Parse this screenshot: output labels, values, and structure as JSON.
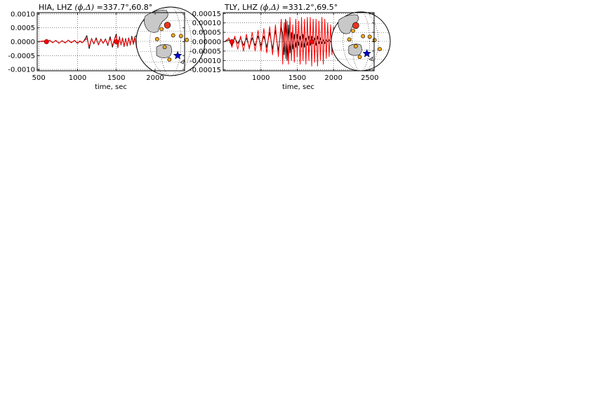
{
  "figure": {
    "background": "#ffffff",
    "colors": {
      "observed": "#000000",
      "synthetic": "#ff0000",
      "land": "#c8c8c8",
      "station": "#f4a81d",
      "station_highlight": "#e8341c",
      "event": "#0000cc",
      "axes": "#000000",
      "grid": "#000000"
    }
  },
  "chart_data": [
    {
      "type": "line",
      "title": "HIA, LHZ (ϕ,Δ)=337.7°,60.8°",
      "title_station": "HIA, LHZ",
      "title_phi_delta_symbol": "(ϕ,Δ)",
      "title_values": "=337.7°,60.8°",
      "xlabel": "time, sec",
      "ylabel": "",
      "xlim": [
        480,
        2380
      ],
      "ylim": [
        -0.00105,
        0.00105
      ],
      "xticks": [
        "500",
        "1000",
        "1500",
        "2000"
      ],
      "xtick_values": [
        500,
        1000,
        1500,
        2000
      ],
      "yticks": [
        "-0.0010",
        "-0.0005",
        "0.0000",
        "0.0005",
        "0.0010"
      ],
      "ytick_values": [
        -0.001,
        -0.0005,
        0,
        0.0005,
        0.001
      ],
      "grid": true,
      "series": [
        {
          "x": [
            500,
            560,
            600,
            640,
            680,
            720,
            760,
            800,
            840,
            880,
            920,
            960,
            1000,
            1030,
            1060,
            1090,
            1120,
            1150,
            1180,
            1210,
            1240,
            1270,
            1300,
            1330,
            1360,
            1390,
            1420,
            1450,
            1480,
            1500,
            1520,
            1540,
            1560,
            1580,
            1600,
            1620,
            1640,
            1660,
            1680,
            1700,
            1720,
            1740,
            1760,
            1780,
            1800,
            1820,
            1840,
            1860
          ],
          "y": [
            0,
            2e-05,
            -4e-05,
            5e-05,
            -3e-05,
            4e-05,
            -5e-05,
            3e-05,
            -4e-05,
            5e-05,
            -3e-05,
            4e-05,
            -6e-05,
            2e-05,
            -4e-05,
            6e-05,
            0.00022,
            -0.00025,
            0.00012,
            -8e-05,
            0.00014,
            -0.00012,
            0.0001,
            -6e-05,
            0.0001,
            -0.00014,
            0.00018,
            -0.0002,
            0.00012,
            0.00028,
            -0.00022,
            0.00018,
            -0.00012,
            0.00014,
            -0.00018,
            0.00012,
            -0.00016,
            0.00014,
            -0.00012,
            0.0002,
            -6e-05,
            0.00018,
            0.00022,
            0.0002,
            0.00012,
            4e-05,
            2e-05,
            0
          ]
        },
        {
          "x": [
            500,
            560,
            600,
            640,
            680,
            720,
            760,
            800,
            840,
            880,
            920,
            960,
            1000,
            1030,
            1060,
            1090,
            1120,
            1150,
            1180,
            1210,
            1240,
            1270,
            1300,
            1330,
            1360,
            1390,
            1420,
            1450,
            1480,
            1500,
            1520,
            1540,
            1560,
            1580,
            1600,
            1620,
            1640,
            1660,
            1680,
            1700,
            1720,
            1740,
            1760,
            1780,
            1800,
            1815,
            1830,
            1845,
            1860,
            1875,
            1890,
            1905,
            1920,
            1935,
            1950,
            1965
          ],
          "y": [
            0,
            3e-05,
            -5e-05,
            6e-05,
            -4e-05,
            5e-05,
            -6e-05,
            4e-05,
            -5e-05,
            6e-05,
            -4e-05,
            5e-05,
            -5e-05,
            3e-05,
            -3e-05,
            4e-05,
            0.00012,
            -0.00018,
            0.0001,
            -6e-05,
            0.0001,
            -0.0001,
            8e-05,
            -5e-05,
            8e-05,
            -0.0001,
            0.00012,
            -0.00014,
            0.0001,
            0.00022,
            -0.0002,
            0.00016,
            -0.0001,
            0.00012,
            -0.00016,
            0.0001,
            -0.00014,
            0.00012,
            -0.0001,
            0.00016,
            -0.0001,
            0.00014,
            -0.00022,
            0.00024,
            -0.0003,
            -0.00045,
            0.0004,
            -0.00042,
            0.00045,
            -0.0004,
            0.0005,
            0.00075,
            0.0008,
            0.0006,
            0.00035,
            0.00015
          ]
        }
      ],
      "markers": [
        {
          "x": 600,
          "y": 0.0,
          "label": "start"
        },
        {
          "x": 1500,
          "y": 0.0,
          "label": "end"
        }
      ],
      "inset_map": {
        "stations": [
          {
            "lon": 112,
            "lat": 48,
            "highlight": true
          },
          {
            "lon": 100,
            "lat": 40
          },
          {
            "lon": 95,
            "lat": 22
          },
          {
            "lon": 110,
            "lat": 10
          },
          {
            "lon": 140,
            "lat": 28
          },
          {
            "lon": 118,
            "lat": -12
          },
          {
            "lon": 125,
            "lat": 30
          },
          {
            "lon": 150,
            "lat": 20
          }
        ],
        "event": {
          "lon": 132,
          "lat": -5
        }
      }
    },
    {
      "type": "line",
      "title": "TLY, LHZ (ϕ,Δ)=331.2°,69.5°",
      "title_station": "TLY, LHZ",
      "title_phi_delta_symbol": "(ϕ,Δ)",
      "title_values": "=331.2°,69.5°",
      "xlabel": "time, sec",
      "ylabel": "",
      "xlim": [
        480,
        2560
      ],
      "ylim": [
        -0.000155,
        0.000155
      ],
      "xticks": [
        "1000",
        "1500",
        "2000",
        "2500"
      ],
      "xtick_values": [
        1000,
        1500,
        2000,
        2500
      ],
      "yticks": [
        "-0.00015",
        "-0.00010",
        "-0.00005",
        "0.00000",
        "0.00005",
        "0.00010",
        "0.00015"
      ],
      "ytick_values": [
        -0.00015,
        -0.0001,
        -5e-05,
        0,
        5e-05,
        0.0001,
        0.00015
      ],
      "grid": true,
      "series": [
        {
          "x": [
            500,
            560,
            600,
            640,
            680,
            720,
            760,
            800,
            840,
            880,
            920,
            960,
            1000,
            1040,
            1080,
            1120,
            1160,
            1200,
            1240,
            1280,
            1300,
            1320,
            1340,
            1360,
            1380,
            1400,
            1420,
            1440,
            1460,
            1480,
            1500,
            1520,
            1540,
            1560,
            1580,
            1600,
            1620,
            1640,
            1660,
            1680,
            1700,
            1720,
            1740,
            1760,
            1780,
            1800,
            1820,
            1840,
            1860,
            1880,
            1900,
            1920,
            1940,
            1960,
            1980,
            2000,
            2020,
            2040
          ],
          "y": [
            0,
            1e-05,
            -2e-05,
            2e-05,
            -1e-05,
            2e-05,
            -2e-05,
            2e-05,
            -3e-05,
            2e-05,
            -2e-05,
            3e-05,
            -2e-05,
            3e-05,
            -3e-05,
            5e-05,
            -4e-05,
            6e-05,
            -5e-05,
            8e-05,
            4e-05,
            -7e-05,
            0.00012,
            -0.0001,
            9e-05,
            -6e-05,
            5e-05,
            -4e-05,
            4e-05,
            -3e-05,
            4e-05,
            -2e-05,
            3e-05,
            -3e-05,
            4e-05,
            -3e-05,
            2e-05,
            -2e-05,
            3e-05,
            -2e-05,
            3e-05,
            -1e-05,
            2e-05,
            -2e-05,
            3e-05,
            -1e-05,
            2e-05,
            -1e-05,
            1e-05,
            -1e-05,
            1e-05,
            0,
            1e-05,
            0,
            0,
            0,
            0,
            0
          ]
        },
        {
          "x": [
            500,
            560,
            600,
            640,
            680,
            720,
            760,
            800,
            840,
            880,
            920,
            960,
            1000,
            1040,
            1080,
            1120,
            1160,
            1200,
            1240,
            1280,
            1300,
            1320,
            1340,
            1360,
            1380,
            1400,
            1420,
            1440,
            1460,
            1480,
            1500,
            1520,
            1540,
            1560,
            1580,
            1600,
            1620,
            1640,
            1660,
            1680,
            1700,
            1720,
            1740,
            1760,
            1780,
            1800,
            1820,
            1840,
            1860,
            1880,
            1900,
            1920,
            1940,
            1960,
            1980,
            2000,
            2020,
            2040
          ],
          "y": [
            0,
            2e-05,
            -3e-05,
            3e-05,
            -4e-05,
            3e-05,
            -5e-05,
            4e-05,
            -4e-05,
            5e-05,
            -5e-05,
            6e-05,
            -5e-05,
            7e-05,
            -6e-05,
            8e-05,
            -7e-05,
            9e-05,
            -8e-05,
            0.00012,
            -0.00012,
            0.0001,
            -9e-05,
            0.00011,
            -0.00012,
            0.00013,
            -0.0001,
            9e-05,
            -0.00011,
            0.00012,
            -8e-05,
            0.00011,
            -0.00012,
            0.00013,
            -0.0001,
            0.00012,
            -0.00012,
            0.00013,
            -0.0001,
            0.00013,
            -0.00013,
            0.00012,
            -0.00011,
            0.00012,
            -0.00013,
            0.00011,
            -0.0001,
            0.00013,
            -0.00012,
            0.00012,
            -9e-05,
            0.0001,
            -8e-05,
            9e-05,
            -7e-05,
            8e-05,
            -6e-05,
            5e-05
          ]
        }
      ],
      "markers": [
        {
          "x": 600,
          "y": 0.0,
          "label": "start"
        },
        {
          "x": 1700,
          "y": 0.0,
          "label": "end"
        }
      ],
      "inset_map": {
        "stations": [
          {
            "lon": 104,
            "lat": 52,
            "highlight": true
          },
          {
            "lon": 100,
            "lat": 40
          },
          {
            "lon": 95,
            "lat": 22
          },
          {
            "lon": 110,
            "lat": 10
          },
          {
            "lon": 140,
            "lat": 28
          },
          {
            "lon": 118,
            "lat": -12
          },
          {
            "lon": 125,
            "lat": 30
          },
          {
            "lon": 150,
            "lat": 20
          },
          {
            "lon": 160,
            "lat": 0
          }
        ],
        "event": {
          "lon": 132,
          "lat": -5
        }
      }
    }
  ]
}
